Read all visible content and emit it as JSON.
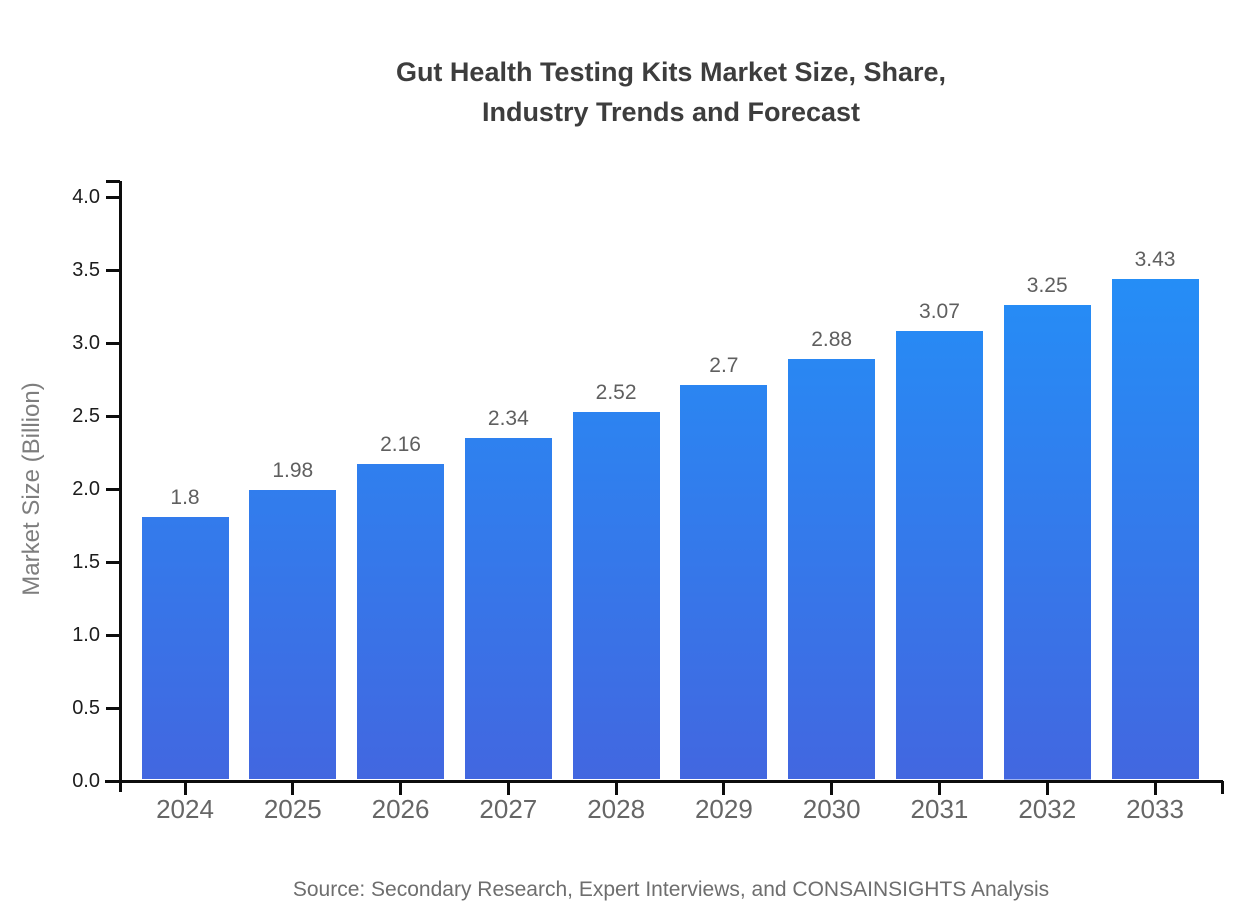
{
  "title": {
    "line1": "Gut Health Testing Kits Market Size, Share,",
    "line2": "Industry Trends and Forecast"
  },
  "footer": {
    "source": "Source: Secondary Research, Expert Interviews, and CONSAINSIGHTS Analysis"
  },
  "chart_data": {
    "type": "bar",
    "title": "Gut Health Testing Kits Market Size, Share, Industry Trends and Forecast",
    "categories": [
      "2024",
      "2025",
      "2026",
      "2027",
      "2028",
      "2029",
      "2030",
      "2031",
      "2032",
      "2033"
    ],
    "values": [
      1.8,
      1.98,
      2.16,
      2.34,
      2.52,
      2.7,
      2.88,
      3.07,
      3.25,
      3.43
    ],
    "bar_labels": [
      "1.8",
      "1.98",
      "2.16",
      "2.34",
      "2.52",
      "2.7",
      "2.88",
      "3.07",
      "3.25",
      "3.43"
    ],
    "xlabel": "",
    "ylabel": "Market Size (Billion)",
    "ylim": [
      0,
      4
    ],
    "ytick_step": 0.5,
    "yticks": [
      "0.0",
      "0.5",
      "1.0",
      "1.5",
      "2.0",
      "2.5",
      "3.0",
      "3.5",
      "4.0"
    ],
    "grid": false,
    "legend": false,
    "colors": {
      "bar_gradient_top": "#2094fa",
      "bar_gradient_bottom": "#4267e0",
      "axis": "#0d0d0d",
      "title_text": "#3d3d3d",
      "xtick_text": "#666666",
      "ytick_text": "#1c1c1c",
      "bar_label_text": "#5f5f5f",
      "ylabel_text": "#7e7e7e",
      "source_text": "#6e6e6e"
    }
  }
}
